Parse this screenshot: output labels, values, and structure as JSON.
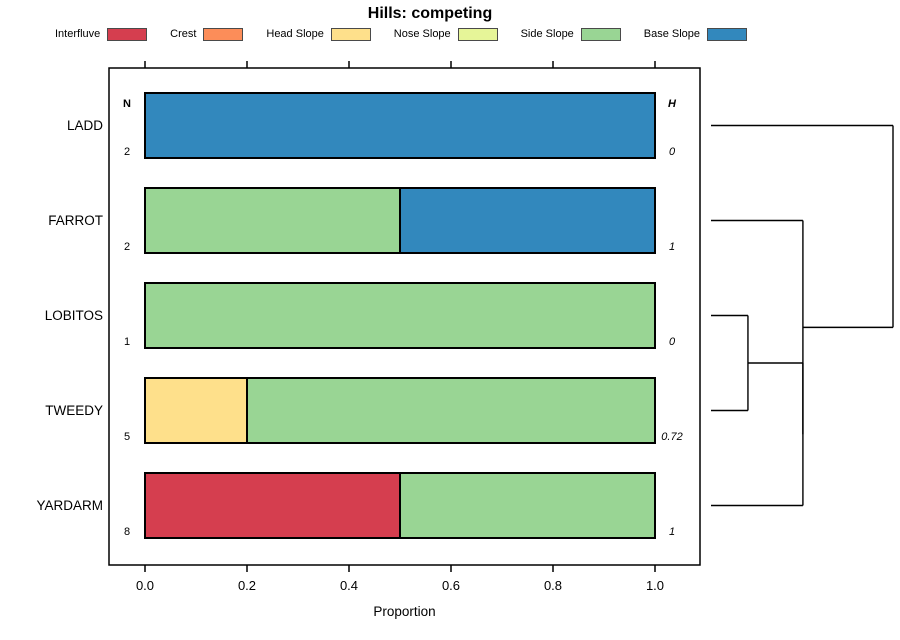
{
  "title": "Hills: competing",
  "legend": {
    "items": [
      {
        "label": "Interfluve",
        "color": "#D53E4F"
      },
      {
        "label": "Crest",
        "color": "#FC8D59"
      },
      {
        "label": "Head Slope",
        "color": "#FEE08B"
      },
      {
        "label": "Nose Slope",
        "color": "#E6F598"
      },
      {
        "label": "Side Slope",
        "color": "#99D594"
      },
      {
        "label": "Base Slope",
        "color": "#3288BD"
      }
    ]
  },
  "chart_data": {
    "type": "bar",
    "subtype": "stacked_horizontal_proportion",
    "title": "Hills: competing",
    "xlabel": "Proportion",
    "xlim": [
      0,
      1
    ],
    "xtick_labels": [
      "0.0",
      "0.2",
      "0.4",
      "0.6",
      "0.8",
      "1.0"
    ],
    "left_column_header": "N",
    "right_column_header": "H",
    "categories": [
      "Interfluve",
      "Crest",
      "Head Slope",
      "Nose Slope",
      "Side Slope",
      "Base Slope"
    ],
    "category_colors": {
      "Interfluve": "#D53E4F",
      "Crest": "#FC8D59",
      "Head Slope": "#FEE08B",
      "Nose Slope": "#E6F598",
      "Side Slope": "#99D594",
      "Base Slope": "#3288BD"
    },
    "rows": [
      {
        "label": "LADD",
        "n": "2",
        "h": "0",
        "segments": [
          {
            "category": "Base Slope",
            "value": 1.0
          }
        ]
      },
      {
        "label": "FARROT",
        "n": "2",
        "h": "1",
        "segments": [
          {
            "category": "Side Slope",
            "value": 0.5
          },
          {
            "category": "Base Slope",
            "value": 0.5
          }
        ]
      },
      {
        "label": "LOBITOS",
        "n": "1",
        "h": "0",
        "segments": [
          {
            "category": "Side Slope",
            "value": 1.0
          }
        ]
      },
      {
        "label": "TWEEDY",
        "n": "5",
        "h": "0.72",
        "segments": [
          {
            "category": "Head Slope",
            "value": 0.2
          },
          {
            "category": "Side Slope",
            "value": 0.8
          }
        ]
      },
      {
        "label": "YARDARM",
        "n": "8",
        "h": "1",
        "segments": [
          {
            "category": "Interfluve",
            "value": 0.5
          },
          {
            "category": "Side Slope",
            "value": 0.5
          }
        ]
      }
    ],
    "dendrogram": {
      "leaf_order": [
        "LADD",
        "FARROT",
        "LOBITOS",
        "TWEEDY",
        "YARDARM"
      ],
      "merges": [
        {
          "id": "m0",
          "a": "LOBITOS",
          "b": "TWEEDY",
          "height": 0.203
        },
        {
          "id": "m1",
          "a": "m0",
          "b": "YARDARM",
          "height": 0.505
        },
        {
          "id": "m2",
          "a": "m1",
          "b": "FARROT",
          "height": 0.505
        },
        {
          "id": "m3",
          "a": "m2",
          "b": "LADD",
          "height": 1.0
        }
      ]
    }
  }
}
